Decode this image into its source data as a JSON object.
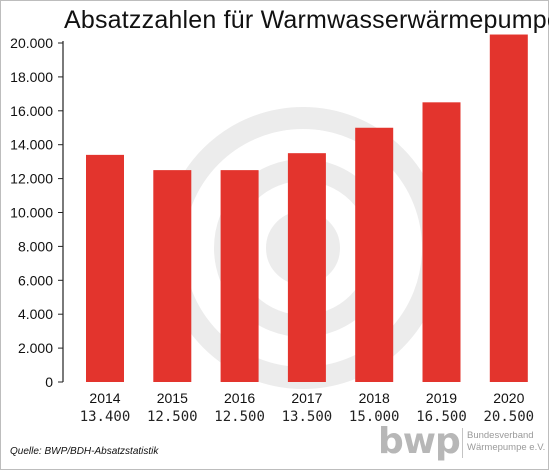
{
  "chart_data": {
    "type": "bar",
    "title": "Absatzzahlen für Warmwasserwärmepumpen",
    "categories": [
      "2014",
      "2015",
      "2016",
      "2017",
      "2018",
      "2019",
      "2020"
    ],
    "values": [
      13400,
      12500,
      12500,
      13500,
      15000,
      16500,
      20500
    ],
    "value_labels": [
      "13.400",
      "12.500",
      "12.500",
      "13.500",
      "15.000",
      "16.500",
      "20.500"
    ],
    "y_ticks": [
      "0",
      "2.000",
      "4.000",
      "6.000",
      "8.000",
      "10.000",
      "12.000",
      "14.000",
      "16.000",
      "18.000",
      "20.000"
    ],
    "ylim": [
      0,
      20000
    ],
    "xlabel": "",
    "ylabel": "",
    "grid": false,
    "bar_color": "#e3342d"
  },
  "source": "Quelle: BWP/BDH-Absatzstatistik",
  "logo": {
    "mark": "bwp",
    "line1": "Bundesverband",
    "line2": "Wärmepumpe e.V."
  }
}
